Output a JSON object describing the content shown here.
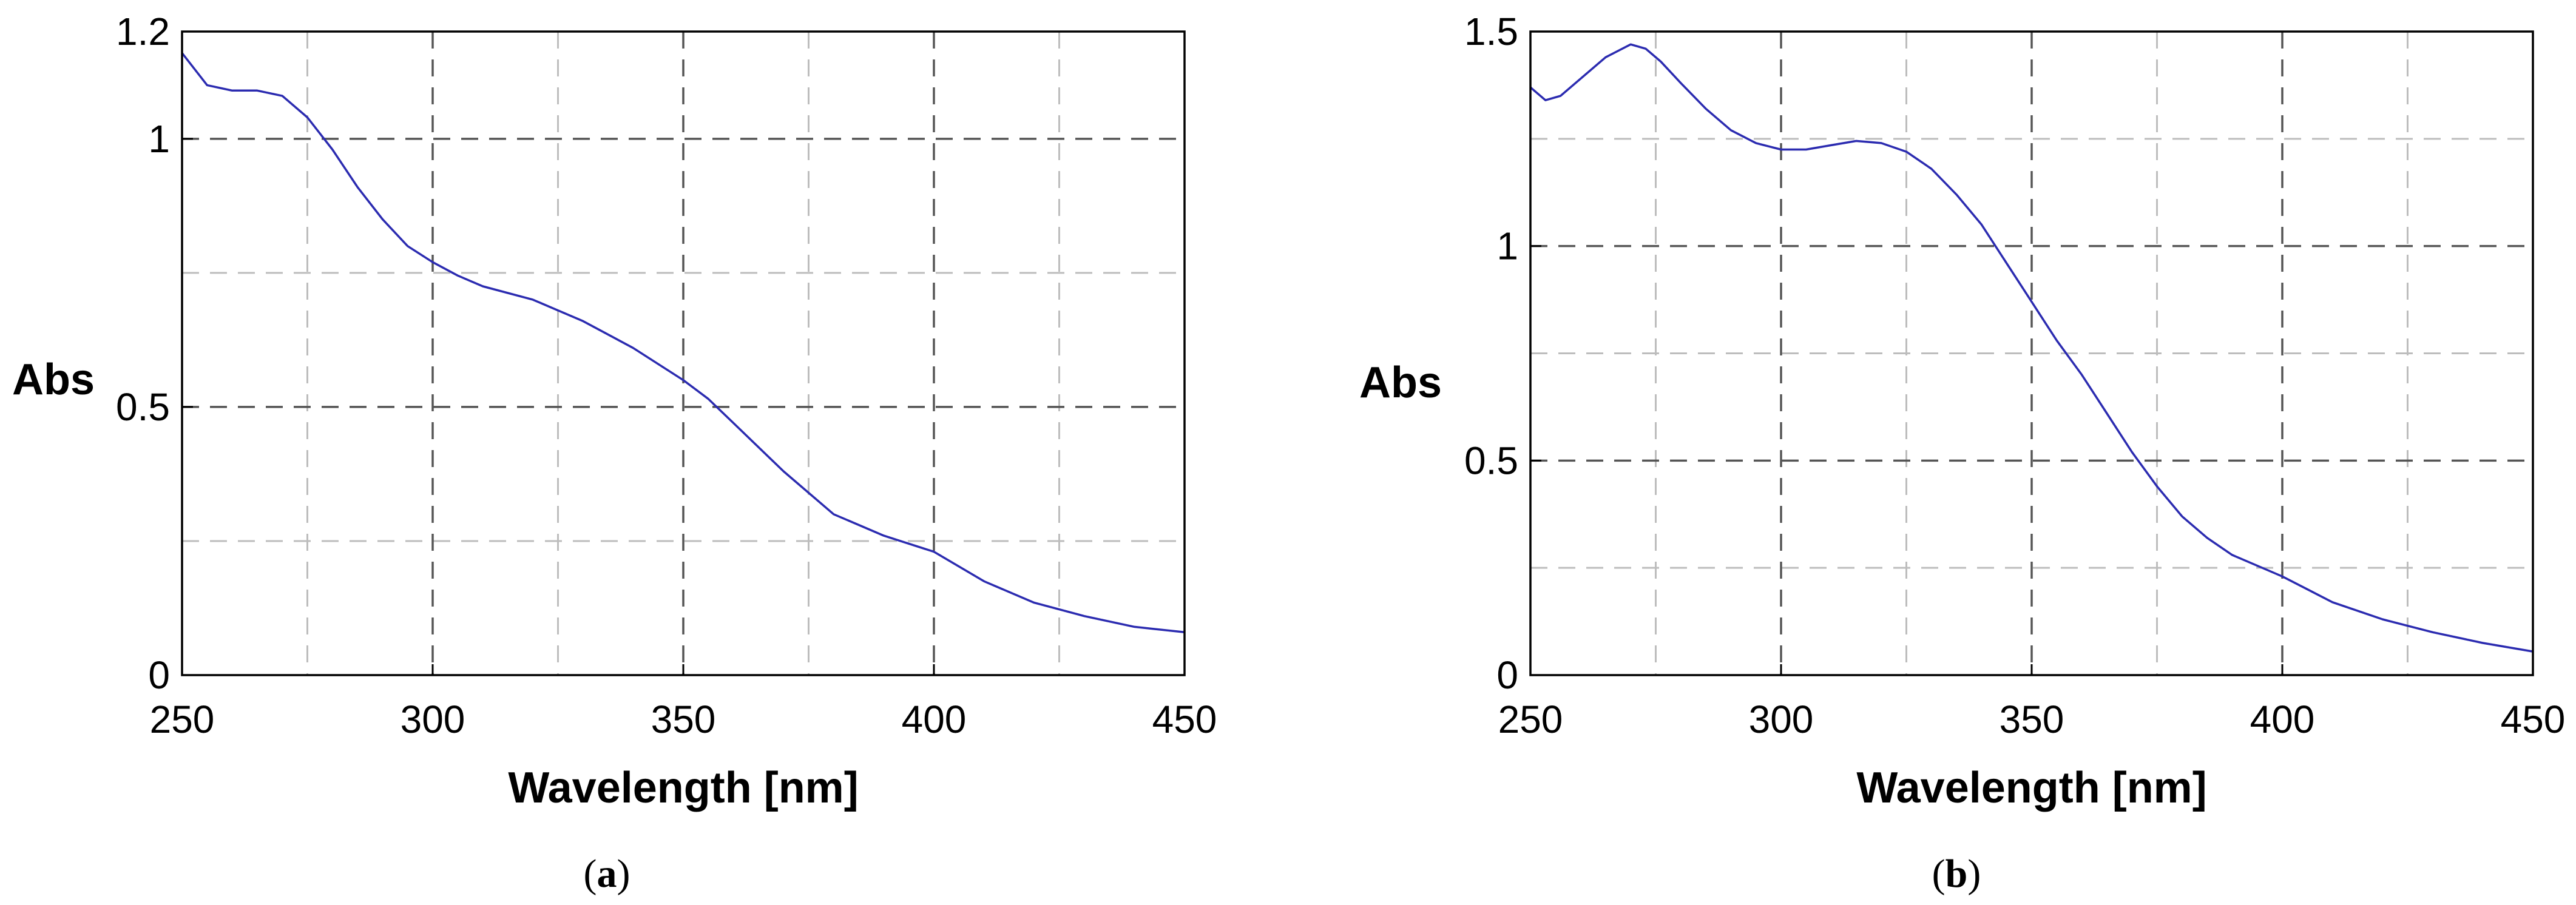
{
  "chart_data": [
    {
      "type": "line",
      "panel_label": "(a)",
      "panel_letter": "a",
      "xlabel": "Wavelength [nm]",
      "ylabel": "Abs",
      "xlim": [
        250,
        450
      ],
      "ylim": [
        0,
        1.2
      ],
      "x_ticks": [
        250,
        300,
        350,
        400,
        450
      ],
      "x_tick_labels": [
        "250",
        "300",
        "350",
        "400",
        "450"
      ],
      "y_ticks": [
        0,
        0.5,
        1,
        1.2
      ],
      "y_tick_labels": [
        "0",
        "0.5",
        "1",
        "1.2"
      ],
      "major_grid_x": [
        300,
        350,
        400
      ],
      "major_grid_y": [
        0.5,
        1
      ],
      "minor_grid_x": [
        275,
        325,
        375,
        425
      ],
      "minor_grid_y": [
        0.25,
        0.75
      ],
      "grid": true,
      "line_color": "#2b2bb0",
      "series": [
        {
          "x": [
            250,
            255,
            260,
            265,
            270,
            275,
            280,
            285,
            290,
            295,
            300,
            305,
            310,
            320,
            330,
            340,
            350,
            355,
            360,
            370,
            380,
            390,
            400,
            410,
            420,
            430,
            440,
            450
          ],
          "y": [
            1.16,
            1.1,
            1.09,
            1.09,
            1.08,
            1.04,
            0.98,
            0.91,
            0.85,
            0.8,
            0.77,
            0.745,
            0.725,
            0.7,
            0.66,
            0.61,
            0.55,
            0.515,
            0.47,
            0.38,
            0.3,
            0.26,
            0.23,
            0.175,
            0.135,
            0.11,
            0.09,
            0.08
          ]
        }
      ]
    },
    {
      "type": "line",
      "panel_label": "(b)",
      "panel_letter": "b",
      "xlabel": "Wavelength [nm]",
      "ylabel": "Abs",
      "xlim": [
        250,
        450
      ],
      "ylim": [
        0,
        1.5
      ],
      "x_ticks": [
        250,
        300,
        350,
        400,
        450
      ],
      "x_tick_labels": [
        "250",
        "300",
        "350",
        "400",
        "450"
      ],
      "y_ticks": [
        0,
        0.5,
        1,
        1.5
      ],
      "y_tick_labels": [
        "0",
        "0.5",
        "1",
        "1.5"
      ],
      "major_grid_x": [
        300,
        350,
        400
      ],
      "major_grid_y": [
        0.5,
        1
      ],
      "minor_grid_x": [
        275,
        325,
        375,
        425
      ],
      "minor_grid_y": [
        0.25,
        0.75,
        1.25
      ],
      "grid": true,
      "line_color": "#2b2bb0",
      "series": [
        {
          "x": [
            250,
            253,
            256,
            260,
            265,
            270,
            273,
            276,
            280,
            285,
            290,
            295,
            300,
            305,
            310,
            315,
            320,
            325,
            330,
            335,
            340,
            345,
            350,
            355,
            360,
            365,
            370,
            375,
            380,
            385,
            390,
            400,
            410,
            420,
            430,
            440,
            450
          ],
          "y": [
            1.37,
            1.34,
            1.35,
            1.39,
            1.44,
            1.47,
            1.46,
            1.43,
            1.38,
            1.32,
            1.27,
            1.24,
            1.225,
            1.225,
            1.235,
            1.245,
            1.24,
            1.22,
            1.18,
            1.12,
            1.05,
            0.96,
            0.87,
            0.78,
            0.7,
            0.61,
            0.52,
            0.44,
            0.37,
            0.32,
            0.28,
            0.23,
            0.17,
            0.13,
            0.1,
            0.075,
            0.055
          ]
        }
      ]
    }
  ]
}
